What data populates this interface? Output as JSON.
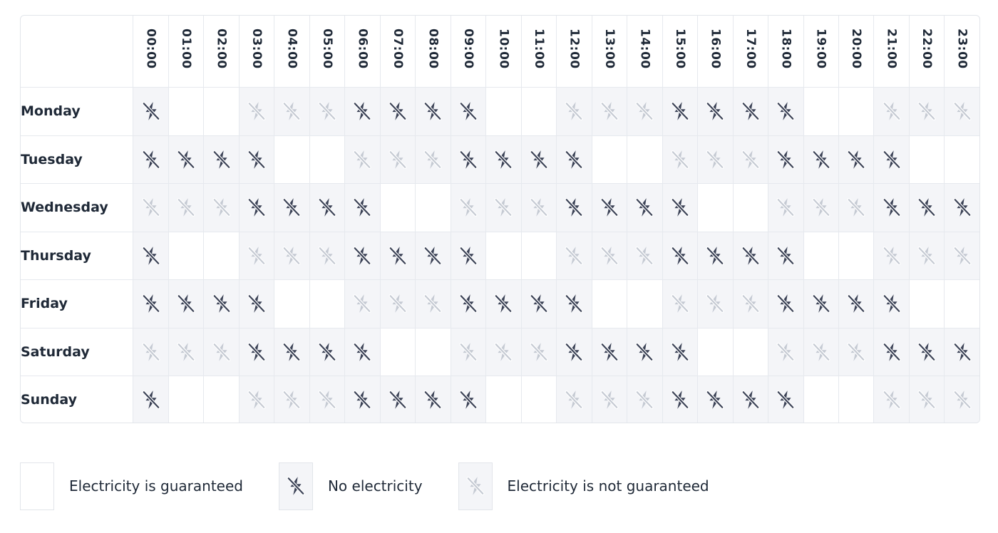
{
  "schedule": {
    "hours": [
      "00:00",
      "01:00",
      "02:00",
      "03:00",
      "04:00",
      "05:00",
      "06:00",
      "07:00",
      "08:00",
      "09:00",
      "10:00",
      "11:00",
      "12:00",
      "13:00",
      "14:00",
      "15:00",
      "16:00",
      "17:00",
      "18:00",
      "19:00",
      "20:00",
      "21:00",
      "22:00",
      "23:00"
    ],
    "days": [
      {
        "name": "Monday",
        "states": [
          "out",
          "on",
          "on",
          "maybe",
          "maybe",
          "maybe",
          "out",
          "out",
          "out",
          "out",
          "on",
          "on",
          "maybe",
          "maybe",
          "maybe",
          "out",
          "out",
          "out",
          "out",
          "on",
          "on",
          "maybe",
          "maybe",
          "maybe"
        ]
      },
      {
        "name": "Tuesday",
        "states": [
          "out",
          "out",
          "out",
          "out",
          "on",
          "on",
          "maybe",
          "maybe",
          "maybe",
          "out",
          "out",
          "out",
          "out",
          "on",
          "on",
          "maybe",
          "maybe",
          "maybe",
          "out",
          "out",
          "out",
          "out",
          "on",
          "on"
        ]
      },
      {
        "name": "Wednesday",
        "states": [
          "maybe",
          "maybe",
          "maybe",
          "out",
          "out",
          "out",
          "out",
          "on",
          "on",
          "maybe",
          "maybe",
          "maybe",
          "out",
          "out",
          "out",
          "out",
          "on",
          "on",
          "maybe",
          "maybe",
          "maybe",
          "out",
          "out",
          "out"
        ]
      },
      {
        "name": "Thursday",
        "states": [
          "out",
          "on",
          "on",
          "maybe",
          "maybe",
          "maybe",
          "out",
          "out",
          "out",
          "out",
          "on",
          "on",
          "maybe",
          "maybe",
          "maybe",
          "out",
          "out",
          "out",
          "out",
          "on",
          "on",
          "maybe",
          "maybe",
          "maybe"
        ]
      },
      {
        "name": "Friday",
        "states": [
          "out",
          "out",
          "out",
          "out",
          "on",
          "on",
          "maybe",
          "maybe",
          "maybe",
          "out",
          "out",
          "out",
          "out",
          "on",
          "on",
          "maybe",
          "maybe",
          "maybe",
          "out",
          "out",
          "out",
          "out",
          "on",
          "on"
        ]
      },
      {
        "name": "Saturday",
        "states": [
          "maybe",
          "maybe",
          "maybe",
          "out",
          "out",
          "out",
          "out",
          "on",
          "on",
          "maybe",
          "maybe",
          "maybe",
          "out",
          "out",
          "out",
          "out",
          "on",
          "on",
          "maybe",
          "maybe",
          "maybe",
          "out",
          "out",
          "out"
        ]
      },
      {
        "name": "Sunday",
        "states": [
          "out",
          "on",
          "on",
          "maybe",
          "maybe",
          "maybe",
          "out",
          "out",
          "out",
          "out",
          "on",
          "on",
          "maybe",
          "maybe",
          "maybe",
          "out",
          "out",
          "out",
          "out",
          "on",
          "on",
          "maybe",
          "maybe",
          "maybe"
        ]
      }
    ]
  },
  "legend": {
    "items": [
      {
        "state": "on",
        "label": "Electricity is guaranteed"
      },
      {
        "state": "out",
        "label": "No electricity"
      },
      {
        "state": "maybe",
        "label": "Electricity is not guaranteed"
      }
    ]
  },
  "icons": {
    "bolt": "no-electricity-bolt-icon"
  },
  "colors": {
    "outage_icon": "#3b4256",
    "uncertain_icon": "#c5cad3",
    "shaded_cell": "#f4f5f8",
    "grid_line": "#e6e9ee"
  }
}
